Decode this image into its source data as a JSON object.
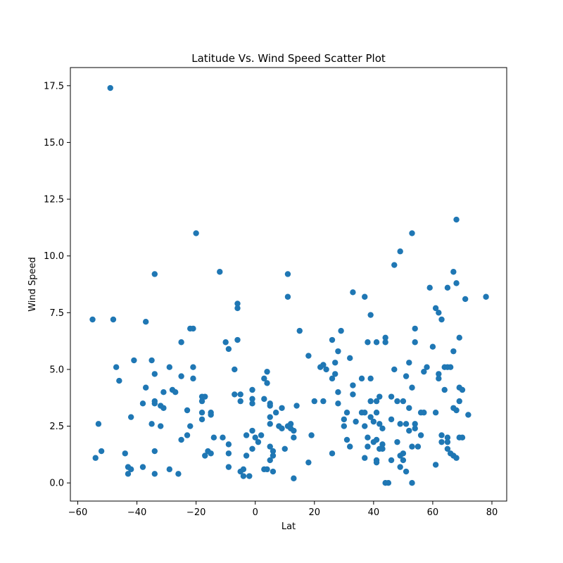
{
  "chart_data": {
    "type": "scatter",
    "title": "Latitude Vs. Wind Speed Scatter Plot",
    "xlabel": "Lat",
    "ylabel": "Wind Speed",
    "xlim": [
      -62.5,
      85
    ],
    "ylim": [
      -0.8,
      18.3
    ],
    "xticks": [
      -60,
      -40,
      -20,
      0,
      20,
      40,
      60,
      80
    ],
    "yticks": [
      0.0,
      2.5,
      5.0,
      7.5,
      10.0,
      12.5,
      15.0,
      17.5
    ],
    "xtick_labels": [
      "−60",
      "−40",
      "−20",
      "0",
      "20",
      "40",
      "60",
      "80"
    ],
    "ytick_labels": [
      "0.0",
      "2.5",
      "5.0",
      "7.5",
      "10.0",
      "12.5",
      "15.0",
      "17.5"
    ],
    "grid": false,
    "point_color": "#1f77b4",
    "points": [
      [
        -49,
        17.4
      ],
      [
        -55,
        7.2
      ],
      [
        -48,
        7.2
      ],
      [
        -54,
        1.1
      ],
      [
        -53,
        2.6
      ],
      [
        -52,
        1.4
      ],
      [
        -47,
        5.1
      ],
      [
        -46,
        4.5
      ],
      [
        -44,
        1.3
      ],
      [
        -43,
        0.7
      ],
      [
        -43,
        0.4
      ],
      [
        -42,
        0.6
      ],
      [
        -42,
        2.9
      ],
      [
        -41,
        5.4
      ],
      [
        -38,
        3.5
      ],
      [
        -38,
        0.7
      ],
      [
        -37,
        7.1
      ],
      [
        -37,
        4.2
      ],
      [
        -35,
        2.6
      ],
      [
        -35,
        5.4
      ],
      [
        -34,
        9.2
      ],
      [
        -34,
        4.8
      ],
      [
        -34,
        3.6
      ],
      [
        -34,
        3.5
      ],
      [
        -34,
        1.4
      ],
      [
        -34,
        0.4
      ],
      [
        -32,
        2.5
      ],
      [
        -32,
        3.4
      ],
      [
        -31,
        3.3
      ],
      [
        -31,
        4.0
      ],
      [
        -29,
        5.1
      ],
      [
        -29,
        0.6
      ],
      [
        -28,
        4.1
      ],
      [
        -27,
        4.0
      ],
      [
        -26,
        0.4
      ],
      [
        -25,
        1.9
      ],
      [
        -25,
        4.7
      ],
      [
        -25,
        6.2
      ],
      [
        -23,
        3.2
      ],
      [
        -23,
        2.1
      ],
      [
        -22,
        2.5
      ],
      [
        -22,
        6.8
      ],
      [
        -21,
        6.8
      ],
      [
        -21,
        5.1
      ],
      [
        -21,
        4.6
      ],
      [
        -20,
        11.0
      ],
      [
        -18,
        3.8
      ],
      [
        -18,
        3.6
      ],
      [
        -18,
        3.1
      ],
      [
        -18,
        2.8
      ],
      [
        -17,
        3.8
      ],
      [
        -17,
        1.2
      ],
      [
        -16,
        1.4
      ],
      [
        -15,
        1.3
      ],
      [
        -15,
        3.1
      ],
      [
        -15,
        3.0
      ],
      [
        -14,
        2.0
      ],
      [
        -12,
        9.3
      ],
      [
        -11,
        2.0
      ],
      [
        -10,
        6.2
      ],
      [
        -9,
        5.9
      ],
      [
        -9,
        1.7
      ],
      [
        -9,
        1.3
      ],
      [
        -9,
        0.7
      ],
      [
        -7,
        5.0
      ],
      [
        -7,
        3.9
      ],
      [
        -6,
        7.9
      ],
      [
        -6,
        7.7
      ],
      [
        -6,
        6.3
      ],
      [
        -5,
        3.9
      ],
      [
        -5,
        3.6
      ],
      [
        -5,
        0.5
      ],
      [
        -4,
        0.6
      ],
      [
        -4,
        0.3
      ],
      [
        -3,
        2.1
      ],
      [
        -3,
        1.2
      ],
      [
        -2,
        0.3
      ],
      [
        -1,
        4.1
      ],
      [
        -1,
        3.7
      ],
      [
        -1,
        3.5
      ],
      [
        -1,
        2.3
      ],
      [
        -1,
        1.5
      ],
      [
        0,
        2.0
      ],
      [
        1,
        1.8
      ],
      [
        2,
        2.1
      ],
      [
        3,
        3.7
      ],
      [
        3,
        4.6
      ],
      [
        3,
        0.6
      ],
      [
        4,
        4.9
      ],
      [
        4,
        4.4
      ],
      [
        4,
        0.6
      ],
      [
        5,
        3.5
      ],
      [
        5,
        3.4
      ],
      [
        5,
        2.9
      ],
      [
        5,
        2.6
      ],
      [
        5,
        1.6
      ],
      [
        5,
        1.0
      ],
      [
        6,
        1.4
      ],
      [
        6,
        0.5
      ],
      [
        6,
        1.2
      ],
      [
        7,
        3.1
      ],
      [
        8,
        2.5
      ],
      [
        9,
        2.4
      ],
      [
        9,
        3.3
      ],
      [
        10,
        1.5
      ],
      [
        11,
        9.2
      ],
      [
        11,
        8.2
      ],
      [
        11,
        2.5
      ],
      [
        12,
        2.6
      ],
      [
        12,
        2.4
      ],
      [
        13,
        2.3
      ],
      [
        13,
        2.0
      ],
      [
        13,
        0.2
      ],
      [
        14,
        3.4
      ],
      [
        15,
        6.7
      ],
      [
        18,
        5.6
      ],
      [
        18,
        0.9
      ],
      [
        19,
        2.1
      ],
      [
        20,
        3.6
      ],
      [
        22,
        5.1
      ],
      [
        23,
        5.2
      ],
      [
        23,
        3.6
      ],
      [
        24,
        5.0
      ],
      [
        26,
        6.3
      ],
      [
        26,
        4.6
      ],
      [
        26,
        1.3
      ],
      [
        27,
        5.3
      ],
      [
        27,
        4.8
      ],
      [
        28,
        5.8
      ],
      [
        28,
        4.0
      ],
      [
        28,
        3.5
      ],
      [
        29,
        6.7
      ],
      [
        30,
        2.8
      ],
      [
        30,
        2.5
      ],
      [
        31,
        3.1
      ],
      [
        31,
        1.9
      ],
      [
        32,
        5.5
      ],
      [
        32,
        1.6
      ],
      [
        33,
        8.4
      ],
      [
        33,
        4.3
      ],
      [
        33,
        3.9
      ],
      [
        34,
        2.7
      ],
      [
        36,
        4.6
      ],
      [
        36,
        3.1
      ],
      [
        37,
        8.2
      ],
      [
        37,
        3.1
      ],
      [
        37,
        2.5
      ],
      [
        37,
        1.1
      ],
      [
        38,
        6.2
      ],
      [
        38,
        2.0
      ],
      [
        38,
        1.6
      ],
      [
        39,
        7.4
      ],
      [
        39,
        4.6
      ],
      [
        39,
        3.6
      ],
      [
        39,
        2.9
      ],
      [
        40,
        2.7
      ],
      [
        40,
        1.8
      ],
      [
        41,
        6.2
      ],
      [
        41,
        3.6
      ],
      [
        41,
        3.1
      ],
      [
        41,
        1.9
      ],
      [
        41,
        1.0
      ],
      [
        41,
        0.9
      ],
      [
        42,
        3.8
      ],
      [
        42,
        2.6
      ],
      [
        42,
        1.5
      ],
      [
        43,
        2.4
      ],
      [
        43,
        1.7
      ],
      [
        43,
        1.5
      ],
      [
        44,
        6.4
      ],
      [
        44,
        6.2
      ],
      [
        44,
        0.0
      ],
      [
        45,
        0.0
      ],
      [
        46,
        3.8
      ],
      [
        46,
        2.8
      ],
      [
        46,
        1.0
      ],
      [
        47,
        9.6
      ],
      [
        47,
        5.0
      ],
      [
        48,
        3.6
      ],
      [
        48,
        1.8
      ],
      [
        49,
        10.2
      ],
      [
        49,
        2.6
      ],
      [
        49,
        1.2
      ],
      [
        49,
        0.7
      ],
      [
        50,
        3.6
      ],
      [
        50,
        1.3
      ],
      [
        50,
        1.0
      ],
      [
        51,
        4.7
      ],
      [
        51,
        2.6
      ],
      [
        51,
        0.5
      ],
      [
        52,
        5.3
      ],
      [
        52,
        3.3
      ],
      [
        52,
        2.3
      ],
      [
        53,
        11.0
      ],
      [
        53,
        4.2
      ],
      [
        53,
        1.6
      ],
      [
        53,
        0.0
      ],
      [
        54,
        6.8
      ],
      [
        54,
        6.2
      ],
      [
        54,
        2.6
      ],
      [
        54,
        2.4
      ],
      [
        55,
        1.6
      ],
      [
        56,
        3.1
      ],
      [
        56,
        2.1
      ],
      [
        57,
        4.9
      ],
      [
        57,
        3.1
      ],
      [
        58,
        5.1
      ],
      [
        59,
        8.6
      ],
      [
        60,
        6.0
      ],
      [
        61,
        7.7
      ],
      [
        61,
        3.1
      ],
      [
        61,
        0.8
      ],
      [
        62,
        7.5
      ],
      [
        62,
        4.8
      ],
      [
        62,
        4.6
      ],
      [
        63,
        7.2
      ],
      [
        63,
        2.1
      ],
      [
        63,
        1.8
      ],
      [
        64,
        5.1
      ],
      [
        64,
        4.1
      ],
      [
        65,
        8.6
      ],
      [
        65,
        5.1
      ],
      [
        65,
        2.0
      ],
      [
        65,
        1.8
      ],
      [
        65,
        1.5
      ],
      [
        66,
        5.1
      ],
      [
        66,
        1.3
      ],
      [
        67,
        9.3
      ],
      [
        67,
        5.8
      ],
      [
        67,
        3.3
      ],
      [
        67,
        1.2
      ],
      [
        68,
        11.6
      ],
      [
        68,
        8.8
      ],
      [
        68,
        3.2
      ],
      [
        68,
        1.1
      ],
      [
        69,
        6.4
      ],
      [
        69,
        4.2
      ],
      [
        69,
        3.6
      ],
      [
        69,
        2.0
      ],
      [
        70,
        4.1
      ],
      [
        70,
        2.0
      ],
      [
        71,
        8.1
      ],
      [
        72,
        3.0
      ],
      [
        78,
        8.2
      ]
    ]
  }
}
